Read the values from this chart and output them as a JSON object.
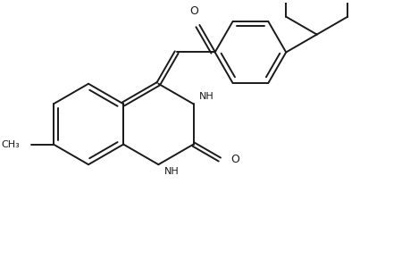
{
  "bg_color": "#ffffff",
  "line_color": "#1a1a1a",
  "line_width": 1.4,
  "figsize": [
    4.6,
    3.0
  ],
  "dpi": 100,
  "xlim": [
    -1.5,
    7.5
  ],
  "ylim": [
    -3.5,
    3.0
  ]
}
